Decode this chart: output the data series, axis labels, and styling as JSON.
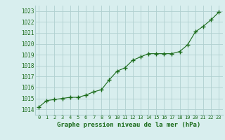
{
  "x": [
    0,
    1,
    2,
    3,
    4,
    5,
    6,
    7,
    8,
    9,
    10,
    11,
    12,
    13,
    14,
    15,
    16,
    17,
    18,
    19,
    20,
    21,
    22,
    23
  ],
  "y": [
    1014.2,
    1014.8,
    1014.9,
    1015.0,
    1015.1,
    1015.1,
    1015.3,
    1015.6,
    1015.8,
    1016.7,
    1017.5,
    1017.8,
    1018.5,
    1018.8,
    1019.1,
    1019.1,
    1019.1,
    1019.1,
    1019.3,
    1019.9,
    1021.1,
    1021.6,
    1022.2,
    1022.9
  ],
  "line_color": "#1a6b1a",
  "marker_color": "#1a6b1a",
  "bg_color": "#d8eeee",
  "grid_color": "#b0d0d0",
  "xlabel": "Graphe pression niveau de la mer (hPa)",
  "xlabel_color": "#1a6b1a",
  "tick_color": "#1a6b1a",
  "ylim_min": 1013.5,
  "ylim_max": 1023.5,
  "xlim_min": -0.5,
  "xlim_max": 23.5,
  "ytick_start": 1014,
  "ytick_end": 1023
}
